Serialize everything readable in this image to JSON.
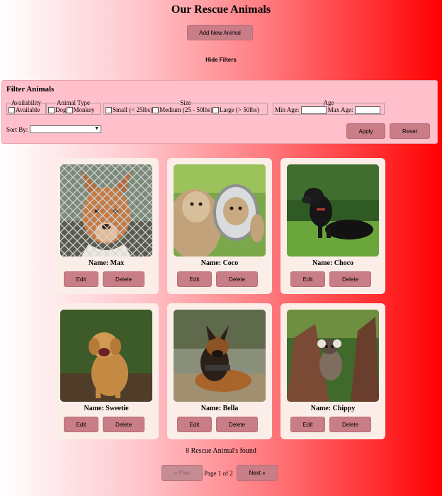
{
  "header": {
    "title": "Our Rescue Animals",
    "add_button": "Add New Animal",
    "hide_filters": "Hide Filters"
  },
  "filters": {
    "title": "Filter Animals",
    "availability": {
      "legend": "Availability",
      "option": "Available"
    },
    "animal_type": {
      "legend": "Animal Type",
      "options": [
        "Dog",
        "Monkey"
      ]
    },
    "size": {
      "legend": "Size",
      "options": [
        "Small (< 25lbs)",
        "Medium (25 - 50lbs)",
        "Large (> 50lbs)"
      ]
    },
    "age": {
      "legend": "Age",
      "min_label": "Min Age:",
      "max_label": "Max Age:"
    },
    "sort_label": "Sort By:",
    "sort_value": "",
    "apply_button": "Apply",
    "reset_button": "Reset"
  },
  "animals": [
    {
      "name": "Name: Max",
      "edit": "Edit",
      "delete": "Delete",
      "photo": "dog-behind-fence"
    },
    {
      "name": "Name: Coco",
      "edit": "Edit",
      "delete": "Delete",
      "photo": "monkey-with-mirror"
    },
    {
      "name": "Name: Choco",
      "edit": "Edit",
      "delete": "Delete",
      "photo": "black-dog-on-grass"
    },
    {
      "name": "Name: Sweetie",
      "edit": "Edit",
      "delete": "Delete",
      "photo": "golden-retriever"
    },
    {
      "name": "Name: Bella",
      "edit": "Edit",
      "delete": "Delete",
      "photo": "german-shepherd"
    },
    {
      "name": "Name: Chippy",
      "edit": "Edit",
      "delete": "Delete",
      "photo": "marmoset-on-tree"
    }
  ],
  "footer": {
    "found": "8 Rescue Animal's found",
    "prev": "« Prev",
    "page": "Page 1 of 2",
    "next": "Next »"
  },
  "colors": {
    "button": "#c97d87",
    "panel": "#ffc0cb",
    "card": "#fbeee8"
  }
}
